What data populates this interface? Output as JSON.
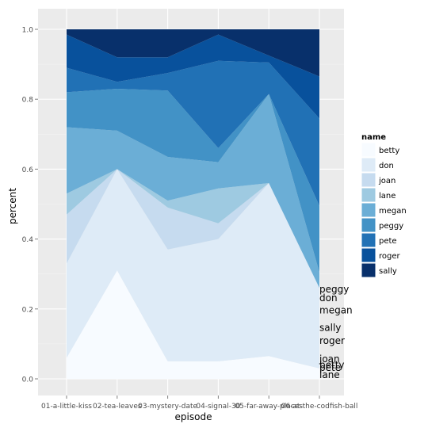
{
  "chart_data": {
    "type": "area",
    "stacked": true,
    "xlabel": "episode",
    "ylabel": "percent",
    "ylim": [
      0,
      1
    ],
    "yticks": [
      "0.0",
      "0.2",
      "0.4",
      "0.6",
      "0.8",
      "1.0"
    ],
    "ytick_values": [
      0,
      0.2,
      0.4,
      0.6,
      0.8,
      1.0
    ],
    "categories": [
      "01-a-little-kiss",
      "02-tea-leaves",
      "03-mystery-date",
      "04-signal-30",
      "05-far-away-places",
      "06-at-the-codfish-ball"
    ],
    "series": [
      {
        "name": "betty",
        "color": "#f7fbff",
        "values": [
          0.06,
          0.31,
          0.05,
          0.05,
          0.065,
          0.03
        ]
      },
      {
        "name": "don",
        "color": "#deebf7",
        "values": [
          0.27,
          0.29,
          0.32,
          0.35,
          0.495,
          0.23
        ]
      },
      {
        "name": "joan",
        "color": "#c6dbef",
        "values": [
          0.14,
          0.0,
          0.12,
          0.045,
          0.0,
          0.0
        ]
      },
      {
        "name": "lane",
        "color": "#9ecae1",
        "values": [
          0.06,
          0.0,
          0.02,
          0.1,
          0.0,
          0.0
        ]
      },
      {
        "name": "megan",
        "color": "#6baed6",
        "values": [
          0.19,
          0.11,
          0.125,
          0.075,
          0.255,
          0.045
        ]
      },
      {
        "name": "peggy",
        "color": "#4292c6",
        "values": [
          0.1,
          0.12,
          0.19,
          0.04,
          0.0,
          0.19
        ]
      },
      {
        "name": "pete",
        "color": "#2171b5",
        "values": [
          0.07,
          0.02,
          0.05,
          0.25,
          0.09,
          0.25
        ]
      },
      {
        "name": "roger",
        "color": "#08519c",
        "values": [
          0.095,
          0.07,
          0.045,
          0.075,
          0.02,
          0.12
        ]
      },
      {
        "name": "sally",
        "color": "#08306b",
        "values": [
          0.015,
          0.08,
          0.08,
          0.015,
          0.075,
          0.135
        ]
      }
    ],
    "end_labels": [
      {
        "text": "peggy",
        "y": 0.245
      },
      {
        "text": "don",
        "y": 0.22
      },
      {
        "text": "megan",
        "y": 0.185
      },
      {
        "text": "sally",
        "y": 0.135
      },
      {
        "text": "roger",
        "y": 0.097
      },
      {
        "text": "joan",
        "y": 0.045
      },
      {
        "text": "betty",
        "y": 0.028
      },
      {
        "text": "pete",
        "y": 0.02
      },
      {
        "text": "lane",
        "y": 0.0
      }
    ],
    "legend": {
      "title": "name",
      "position": "right"
    },
    "grid": true
  }
}
